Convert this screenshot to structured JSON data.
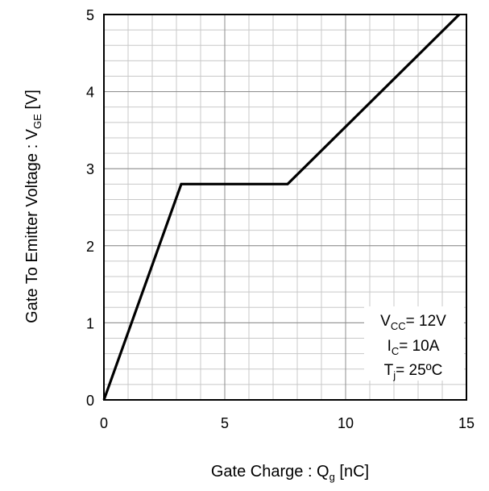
{
  "chart_data": {
    "type": "line",
    "xlabel_prefix": "Gate Charge : Q",
    "xlabel_sub": "g",
    "xlabel_suffix": " [nC]",
    "ylabel_prefix": "Gate To Emitter Voltage : V",
    "ylabel_sub": "GE",
    "ylabel_suffix": " [V]",
    "xlim": [
      0,
      15
    ],
    "ylim": [
      0,
      5
    ],
    "xticks": [
      0,
      5,
      10,
      15
    ],
    "yticks": [
      0,
      1,
      2,
      3,
      4,
      5
    ],
    "grid": true,
    "series": [
      {
        "x": [
          0,
          3.2,
          7.6,
          14.7
        ],
        "y": [
          0,
          2.8,
          2.8,
          5.0
        ],
        "color": "#000000"
      }
    ],
    "annotations": {
      "line1": {
        "prefix": "V",
        "sub": "CC",
        "suffix": "= 12V"
      },
      "line2": {
        "prefix": "I",
        "sub": "C",
        "suffix": "= 10A"
      },
      "line3": {
        "prefix": "T",
        "sub": "j",
        "suffix": "= 25ºC"
      }
    }
  }
}
